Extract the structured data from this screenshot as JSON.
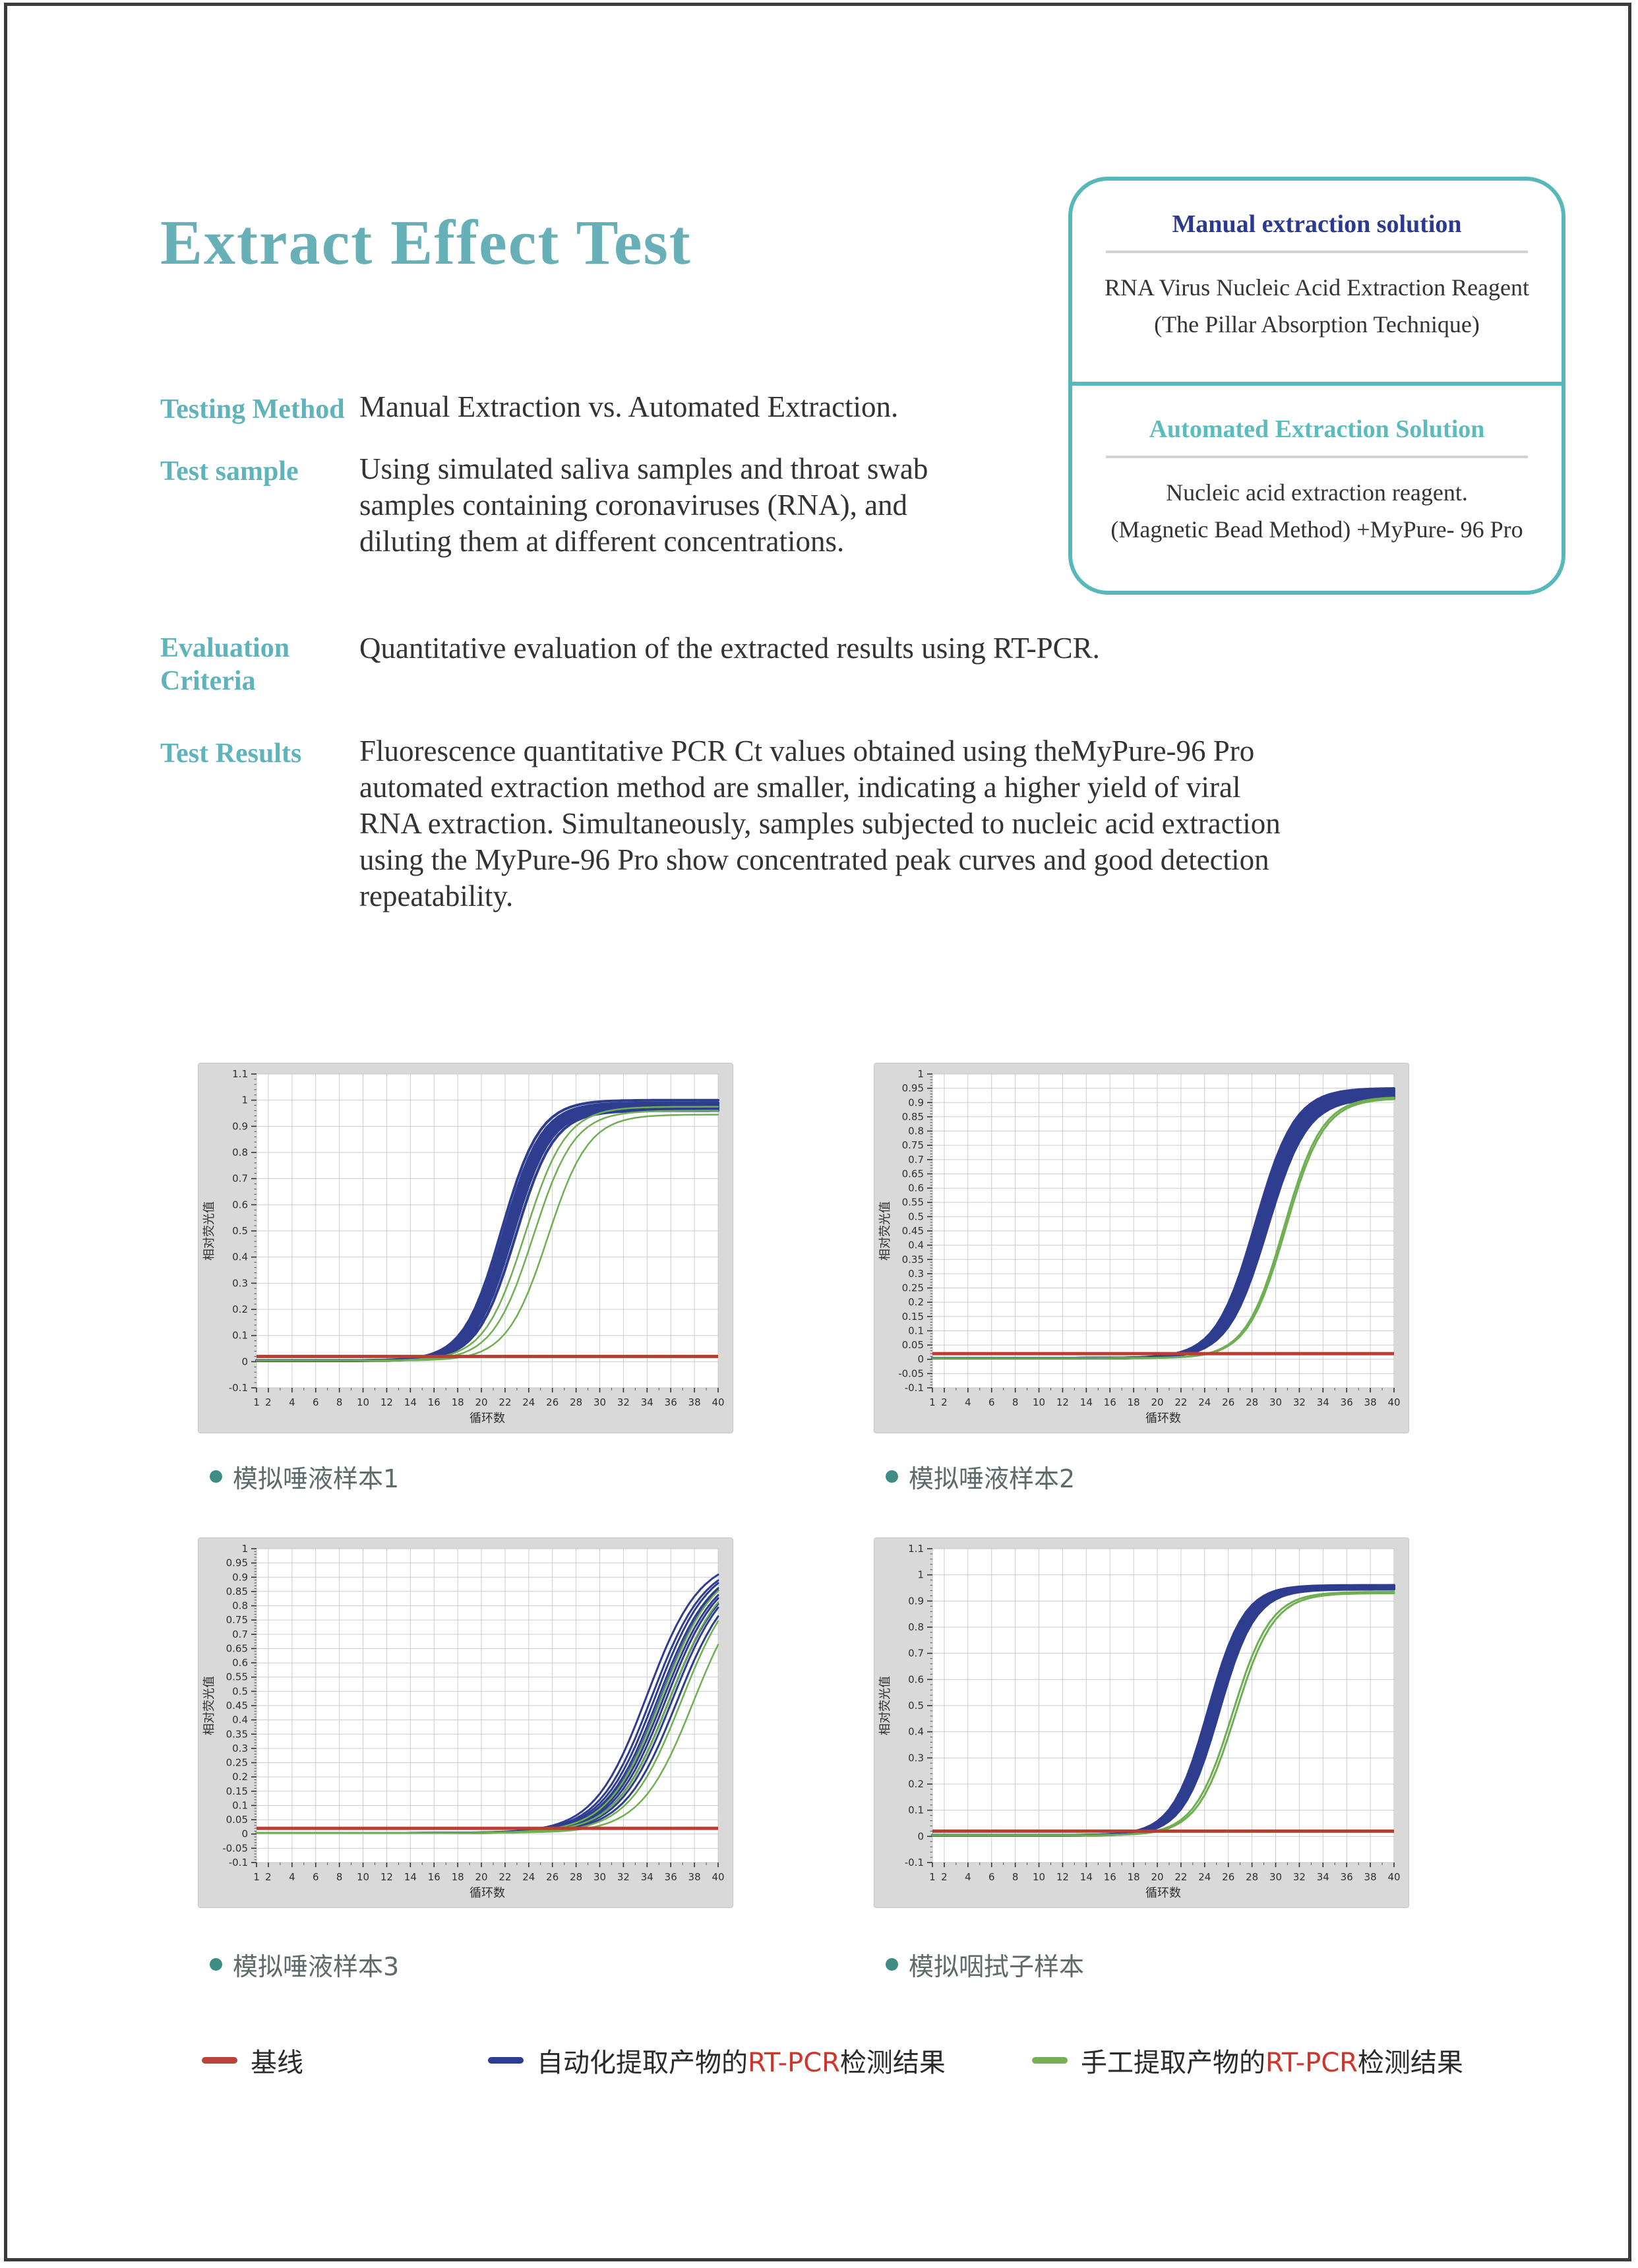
{
  "title": "Extract Effect Test",
  "info_box": {
    "manual_title": "Manual extraction solution",
    "manual_line1": "RNA Virus Nucleic Acid Extraction Reagent",
    "manual_line2": "(The Pillar Absorption Technique)",
    "auto_title": "Automated Extraction Solution",
    "auto_line1": "Nucleic acid extraction reagent.",
    "auto_line2": "(Magnetic Bead Method) +MyPure- 96 Pro"
  },
  "sections": [
    {
      "label": "Testing Method",
      "text": "Manual Extraction vs. Automated Extraction."
    },
    {
      "label": "Test sample",
      "text": "Using simulated saliva samples and throat swab\nsamples containing coronaviruses (RNA), and\ndiluting them at different concentrations."
    },
    {
      "label": "Evaluation\nCriteria",
      "text": "Quantitative evaluation of the extracted results using RT-PCR."
    },
    {
      "label": "Test Results",
      "text": "Fluorescence quantitative PCR Ct values obtained using theMyPure-96 Pro\nautomated extraction method are smaller, indicating a higher yield of viral\nRNA extraction. Simultaneously, samples subjected to nucleic acid extraction\nusing the MyPure-96 Pro show concentrated peak curves and good detection\nrepeatability."
    }
  ],
  "legend": [
    {
      "swatch": "#b8433a",
      "pre": "基线",
      "red": "",
      "post": ""
    },
    {
      "swatch": "#2e3d8f",
      "pre": "自动化提取产物的",
      "red": "RT-PCR",
      "post": "检测结果"
    },
    {
      "swatch": "#79ae56",
      "pre": "手工提取产物的",
      "red": "RT-PCR",
      "post": "检测结果"
    }
  ],
  "colors": {
    "teal": "#57b8bc",
    "navy": "#2b3990",
    "blue_curve": "#2e3d8f",
    "green_curve": "#6faf52",
    "red_curve": "#bf3a30",
    "panel_bg": "#d9d9d9",
    "grid": "#c9cdd1",
    "tick_text": "#2f2f2f"
  },
  "chart_data": [
    {
      "type": "line",
      "title": "模拟唾液样本1",
      "xlabel": "循环数",
      "ylabel": "相对荧光值",
      "xlim": [
        1,
        40
      ],
      "ylim": [
        -0.1,
        1.1
      ],
      "ytick_step": 0.1,
      "xticks": [
        1,
        2,
        4,
        6,
        8,
        10,
        12,
        14,
        16,
        18,
        20,
        22,
        24,
        26,
        28,
        30,
        32,
        34,
        36,
        38,
        40
      ],
      "baseline": 0.02,
      "series": [
        {
          "name": "automated RT-PCR",
          "color": "blue_curve",
          "width": 4,
          "k": 0.62,
          "mids": [
            21.7,
            21.9,
            22.05,
            22.2,
            22.35,
            22.5,
            22.65,
            22.9
          ],
          "plateaus": [
            1.0,
            0.99,
            0.985,
            0.98,
            0.975,
            0.97,
            0.965,
            0.96
          ]
        },
        {
          "name": "manual RT-PCR",
          "color": "green_curve",
          "width": 2.5,
          "k": 0.58,
          "mids": [
            23.7,
            24.4,
            25.6
          ],
          "plateaus": [
            0.975,
            0.96,
            0.945
          ]
        }
      ]
    },
    {
      "type": "line",
      "title": "模拟唾液样本2",
      "xlabel": "循环数",
      "ylabel": "相对荧光值",
      "xlim": [
        1,
        40
      ],
      "ylim": [
        -0.1,
        1.0
      ],
      "ytick_step": 0.05,
      "xticks": [
        1,
        2,
        4,
        6,
        8,
        10,
        12,
        14,
        16,
        18,
        20,
        22,
        24,
        26,
        28,
        30,
        32,
        34,
        36,
        38,
        40
      ],
      "baseline": 0.02,
      "series": [
        {
          "name": "automated RT-PCR",
          "color": "blue_curve",
          "width": 4,
          "k": 0.6,
          "mids": [
            28.3,
            28.45,
            28.6,
            28.7,
            28.85,
            29.0,
            29.15,
            29.3
          ],
          "plateaus": [
            0.95,
            0.945,
            0.94,
            0.935,
            0.93,
            0.925,
            0.92,
            0.915
          ]
        },
        {
          "name": "manual RT-PCR",
          "color": "green_curve",
          "width": 3,
          "k": 0.62,
          "mids": [
            30.7,
            30.85
          ],
          "plateaus": [
            0.92,
            0.915
          ]
        }
      ]
    },
    {
      "type": "line",
      "title": "模拟唾液样本3",
      "xlabel": "循环数",
      "ylabel": "相对荧光值",
      "xlim": [
        1,
        40
      ],
      "ylim": [
        -0.1,
        1.0
      ],
      "ytick_step": 0.05,
      "xticks": [
        1,
        2,
        4,
        6,
        8,
        10,
        12,
        14,
        16,
        18,
        20,
        22,
        24,
        26,
        28,
        30,
        32,
        34,
        36,
        38,
        40
      ],
      "baseline": 0.02,
      "series": [
        {
          "name": "automated RT-PCR",
          "color": "blue_curve",
          "width": 3,
          "k": 0.45,
          "mids": [
            34.0,
            34.4,
            34.7,
            34.95,
            35.15,
            35.35,
            35.6,
            35.85,
            36.1,
            36.5
          ],
          "plateaus": [
            0.97,
            0.96,
            0.96,
            0.95,
            0.95,
            0.94,
            0.94,
            0.93,
            0.93,
            0.92
          ]
        },
        {
          "name": "manual RT-PCR",
          "color": "green_curve",
          "width": 2.5,
          "k": 0.45,
          "mids": [
            35.2,
            35.9,
            36.9,
            37.9
          ],
          "plateaus": [
            0.95,
            0.94,
            0.93,
            0.92
          ]
        }
      ]
    },
    {
      "type": "line",
      "title": "模拟咽拭子样本",
      "xlabel": "循环数",
      "ylabel": "相对荧光值",
      "xlim": [
        1,
        40
      ],
      "ylim": [
        -0.1,
        1.1
      ],
      "ytick_step": 0.1,
      "xticks": [
        1,
        2,
        4,
        6,
        8,
        10,
        12,
        14,
        16,
        18,
        20,
        22,
        24,
        26,
        28,
        30,
        32,
        34,
        36,
        38,
        40
      ],
      "baseline": 0.02,
      "series": [
        {
          "name": "automated RT-PCR",
          "color": "blue_curve",
          "width": 4,
          "k": 0.66,
          "mids": [
            24.3,
            24.45,
            24.6,
            24.75,
            24.9,
            25.05,
            25.2
          ],
          "plateaus": [
            0.96,
            0.958,
            0.955,
            0.953,
            0.95,
            0.948,
            0.945
          ]
        },
        {
          "name": "manual RT-PCR",
          "color": "green_curve",
          "width": 3,
          "k": 0.62,
          "mids": [
            26.35,
            26.6
          ],
          "plateaus": [
            0.935,
            0.93
          ]
        }
      ]
    }
  ]
}
